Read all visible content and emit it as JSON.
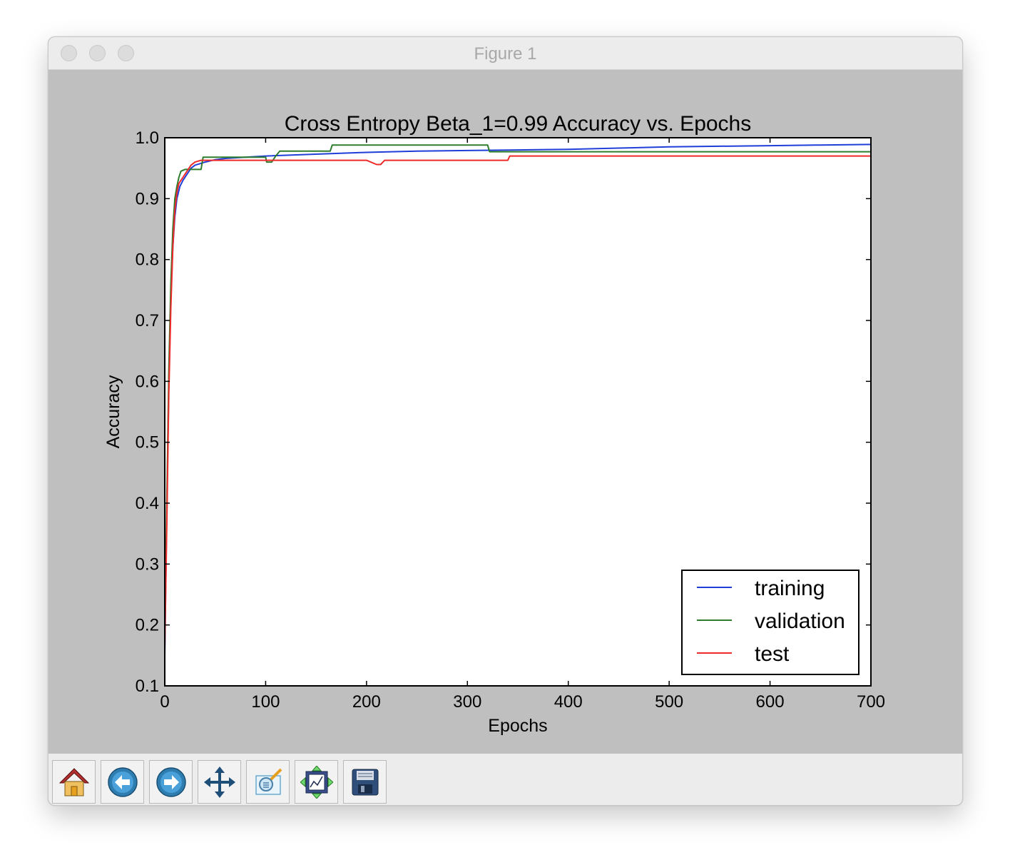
{
  "window": {
    "title": "Figure 1"
  },
  "toolbar": {
    "buttons": [
      {
        "name": "home",
        "icon": "home-icon"
      },
      {
        "name": "back",
        "icon": "back-arrow-icon"
      },
      {
        "name": "forward",
        "icon": "forward-arrow-icon"
      },
      {
        "name": "pan",
        "icon": "pan-arrows-icon"
      },
      {
        "name": "zoom",
        "icon": "zoom-rect-icon"
      },
      {
        "name": "subplots",
        "icon": "subplots-config-icon"
      },
      {
        "name": "save",
        "icon": "save-floppy-icon"
      }
    ]
  },
  "chart_data": {
    "type": "line",
    "title": "Cross Entropy Beta_1=0.99 Accuracy vs. Epochs",
    "xlabel": "Epochs",
    "ylabel": "Accuracy",
    "xlim": [
      0,
      700
    ],
    "ylim": [
      0.1,
      1.0
    ],
    "xticks": [
      "0",
      "100",
      "200",
      "300",
      "400",
      "500",
      "600",
      "700"
    ],
    "yticks": [
      "0.1",
      "0.2",
      "0.3",
      "0.4",
      "0.5",
      "0.6",
      "0.7",
      "0.8",
      "0.9",
      "1.0"
    ],
    "grid": false,
    "legend_position": "lower right",
    "series": [
      {
        "name": "training",
        "color": "#1f3fd8",
        "x": [
          0,
          2,
          4,
          6,
          8,
          10,
          12,
          15,
          18,
          22,
          26,
          30,
          40,
          50,
          60,
          80,
          100,
          150,
          200,
          250,
          300,
          350,
          400,
          450,
          500,
          550,
          600,
          650,
          700
        ],
        "y": [
          0.15,
          0.38,
          0.6,
          0.74,
          0.82,
          0.87,
          0.9,
          0.92,
          0.93,
          0.94,
          0.95,
          0.955,
          0.96,
          0.964,
          0.966,
          0.968,
          0.97,
          0.973,
          0.976,
          0.978,
          0.979,
          0.98,
          0.981,
          0.983,
          0.985,
          0.986,
          0.987,
          0.988,
          0.989
        ]
      },
      {
        "name": "validation",
        "color": "#2e7d2e",
        "x": [
          0,
          2,
          4,
          6,
          8,
          10,
          12,
          14,
          16,
          20,
          36,
          38,
          100,
          101,
          106,
          110,
          114,
          164,
          166,
          320,
          322,
          700
        ],
        "y": [
          0.18,
          0.4,
          0.62,
          0.76,
          0.85,
          0.9,
          0.92,
          0.935,
          0.945,
          0.948,
          0.948,
          0.968,
          0.968,
          0.96,
          0.96,
          0.97,
          0.978,
          0.978,
          0.988,
          0.988,
          0.977,
          0.977
        ]
      },
      {
        "name": "test",
        "color": "#ee2a2a",
        "x": [
          0,
          2,
          4,
          6,
          8,
          10,
          12,
          14,
          18,
          22,
          26,
          30,
          36,
          60,
          200,
          210,
          214,
          218,
          340,
          342,
          700
        ],
        "y": [
          0.16,
          0.36,
          0.58,
          0.72,
          0.82,
          0.88,
          0.91,
          0.925,
          0.935,
          0.945,
          0.955,
          0.96,
          0.963,
          0.963,
          0.963,
          0.956,
          0.956,
          0.963,
          0.963,
          0.97,
          0.97
        ]
      }
    ]
  }
}
